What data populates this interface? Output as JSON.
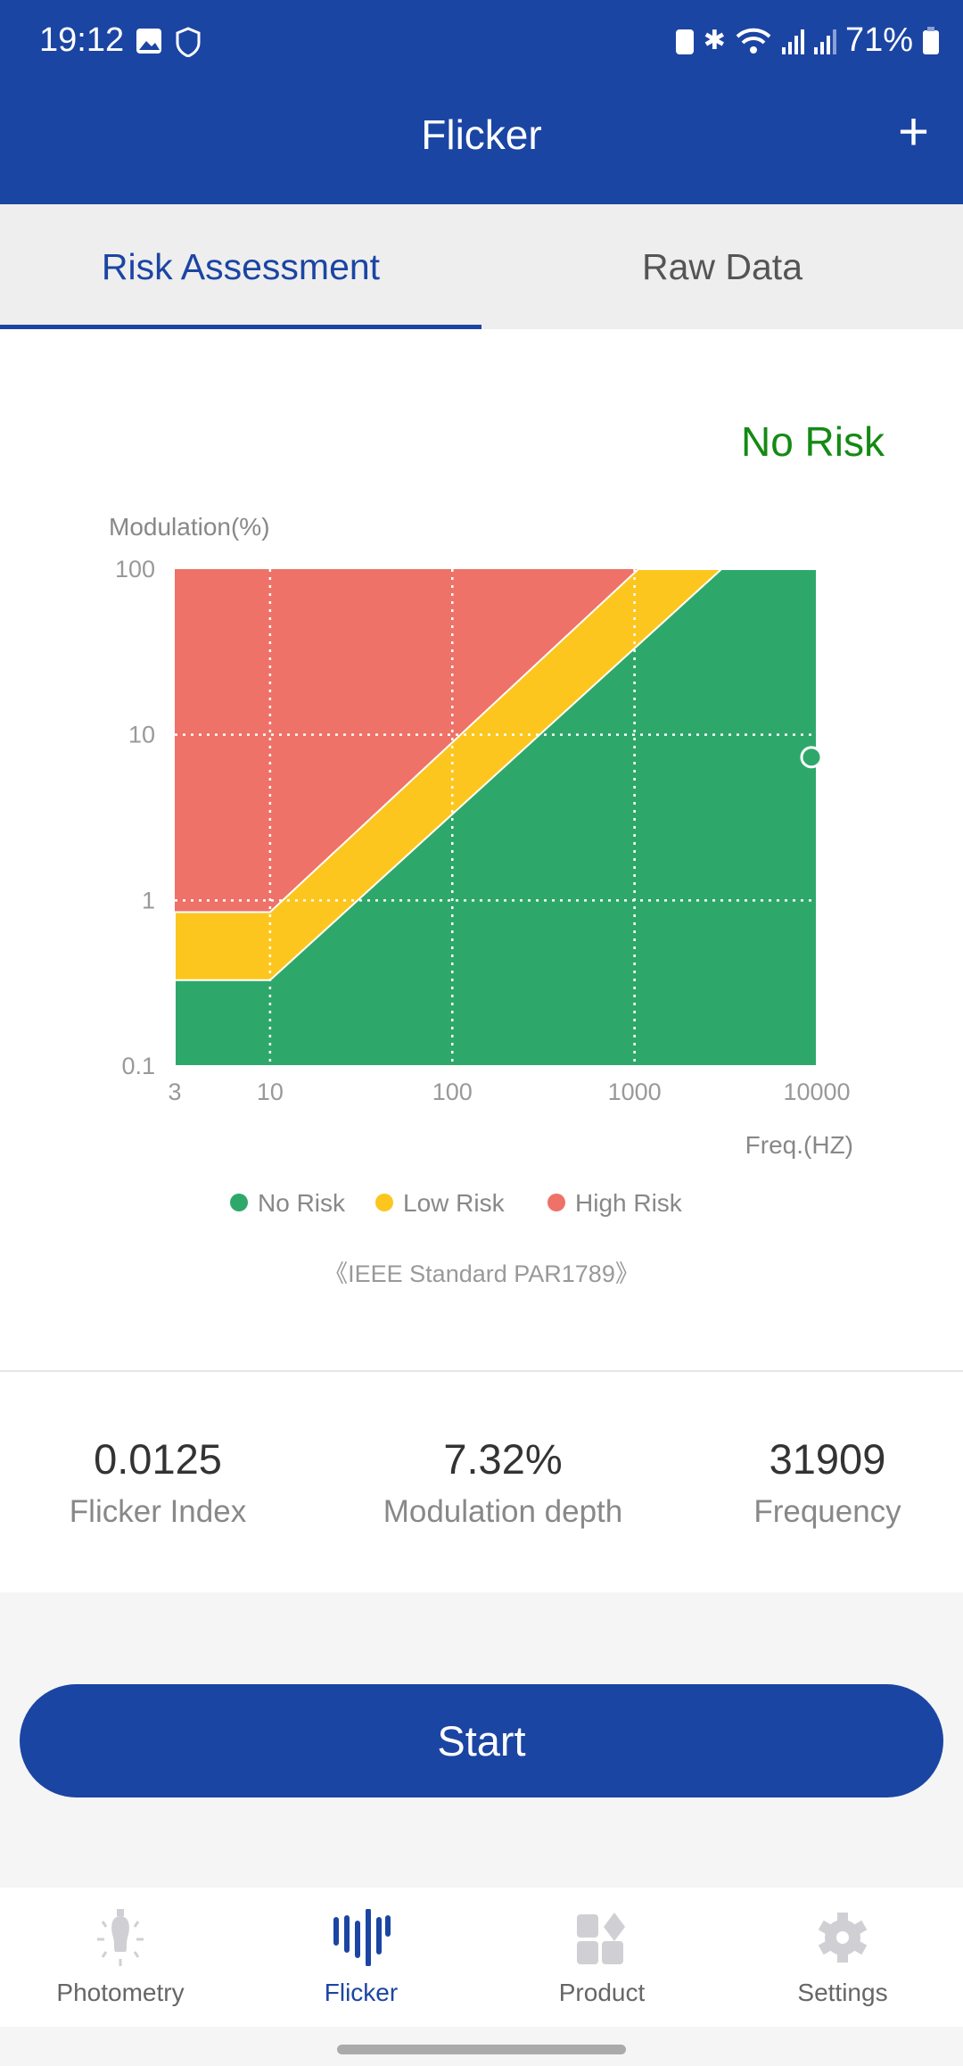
{
  "status": {
    "time": "19:12",
    "battery": "71%"
  },
  "header": {
    "title": "Flicker"
  },
  "tabs": [
    {
      "label": "Risk Assessment",
      "active": true
    },
    {
      "label": "Raw Data",
      "active": false
    }
  ],
  "result": {
    "label": "No Risk",
    "color": "#148a14"
  },
  "chart_data": {
    "type": "area",
    "ylabel": "Modulation(%)",
    "xlabel": "Freq.(HZ)",
    "xscale": "log",
    "yscale": "log",
    "xlim": [
      3,
      10000
    ],
    "ylim": [
      0.1,
      100
    ],
    "xticks": [
      "3",
      "10",
      "100",
      "1000",
      "10000"
    ],
    "yticks": [
      "100",
      "10",
      "1",
      "0.1"
    ],
    "regions": [
      {
        "name": "No Risk",
        "color": "#2ea86a",
        "upper": [
          [
            3,
            0.33
          ],
          [
            10,
            0.33
          ],
          [
            3000,
            100
          ]
        ]
      },
      {
        "name": "Low Risk",
        "color": "#fcc61f",
        "upper": [
          [
            3,
            0.85
          ],
          [
            10,
            0.85
          ],
          [
            1050,
            100
          ]
        ]
      },
      {
        "name": "High Risk",
        "color": "#ee7268",
        "upper": [
          [
            3,
            100
          ],
          [
            10000,
            100
          ]
        ]
      }
    ],
    "point": {
      "frequency": 31909,
      "modulation": 7.32
    },
    "caption": "《IEEE Standard PAR1789》"
  },
  "legend": [
    {
      "label": "No Risk",
      "color": "#2ea86a"
    },
    {
      "label": "Low Risk",
      "color": "#fcc61f"
    },
    {
      "label": "High Risk",
      "color": "#ee7268"
    }
  ],
  "stats": [
    {
      "value": "0.0125",
      "label": "Flicker Index"
    },
    {
      "value": "7.32%",
      "label": "Modulation depth"
    },
    {
      "value": "31909",
      "label": "Frequency"
    }
  ],
  "start_label": "Start",
  "nav": [
    {
      "label": "Photometry"
    },
    {
      "label": "Flicker",
      "active": true
    },
    {
      "label": "Product"
    },
    {
      "label": "Settings"
    }
  ]
}
